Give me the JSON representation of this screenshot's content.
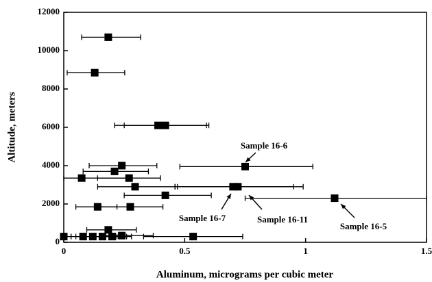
{
  "chart_data": {
    "type": "scatter",
    "x_label": "Aluminum, micrograms per cubic meter",
    "y_label": "Altitude, meters",
    "xlim": [
      0,
      1.5
    ],
    "xticks": [
      0,
      0.5,
      1,
      1.5
    ],
    "ylim": [
      0,
      12000
    ],
    "yticks": [
      0,
      2000,
      4000,
      6000,
      8000,
      10000,
      12000
    ],
    "color": "#000000",
    "x": [
      0.184,
      0.128,
      0.39,
      0.42,
      0.75,
      0.24,
      0.21,
      0.074,
      0.27,
      0.295,
      0.7,
      0.72,
      0.42,
      1.12,
      0.14,
      0.275,
      0.184,
      0.535,
      0.0,
      0.08,
      0.12,
      0.16,
      0.2,
      0.24
    ],
    "y": [
      10700,
      8850,
      6100,
      6100,
      3950,
      4000,
      3700,
      3350,
      3350,
      2900,
      2900,
      2900,
      2450,
      2300,
      1850,
      1850,
      650,
      300,
      300,
      300,
      300,
      300,
      300,
      350
    ],
    "x_low": [
      0.074,
      0.014,
      0.21,
      0.25,
      0.48,
      0.105,
      0.08,
      0.0,
      0.14,
      0.14,
      0.46,
      0.47,
      0.25,
      0.75,
      0.05,
      0.14,
      0.095,
      0.33,
      0.0,
      0.03,
      0.05,
      0.08,
      0.12,
      0.15
    ],
    "x_high": [
      0.318,
      0.252,
      0.59,
      0.6,
      1.03,
      0.385,
      0.35,
      0.265,
      0.4,
      0.46,
      0.95,
      0.99,
      0.61,
      1.5,
      0.22,
      0.41,
      0.3,
      0.74,
      0.03,
      0.2,
      0.22,
      0.26,
      0.28,
      0.37
    ],
    "annotations": [
      "Sample 16-6",
      "Sample 16-7",
      "Sample 16-11",
      "Sample 16-5"
    ]
  }
}
